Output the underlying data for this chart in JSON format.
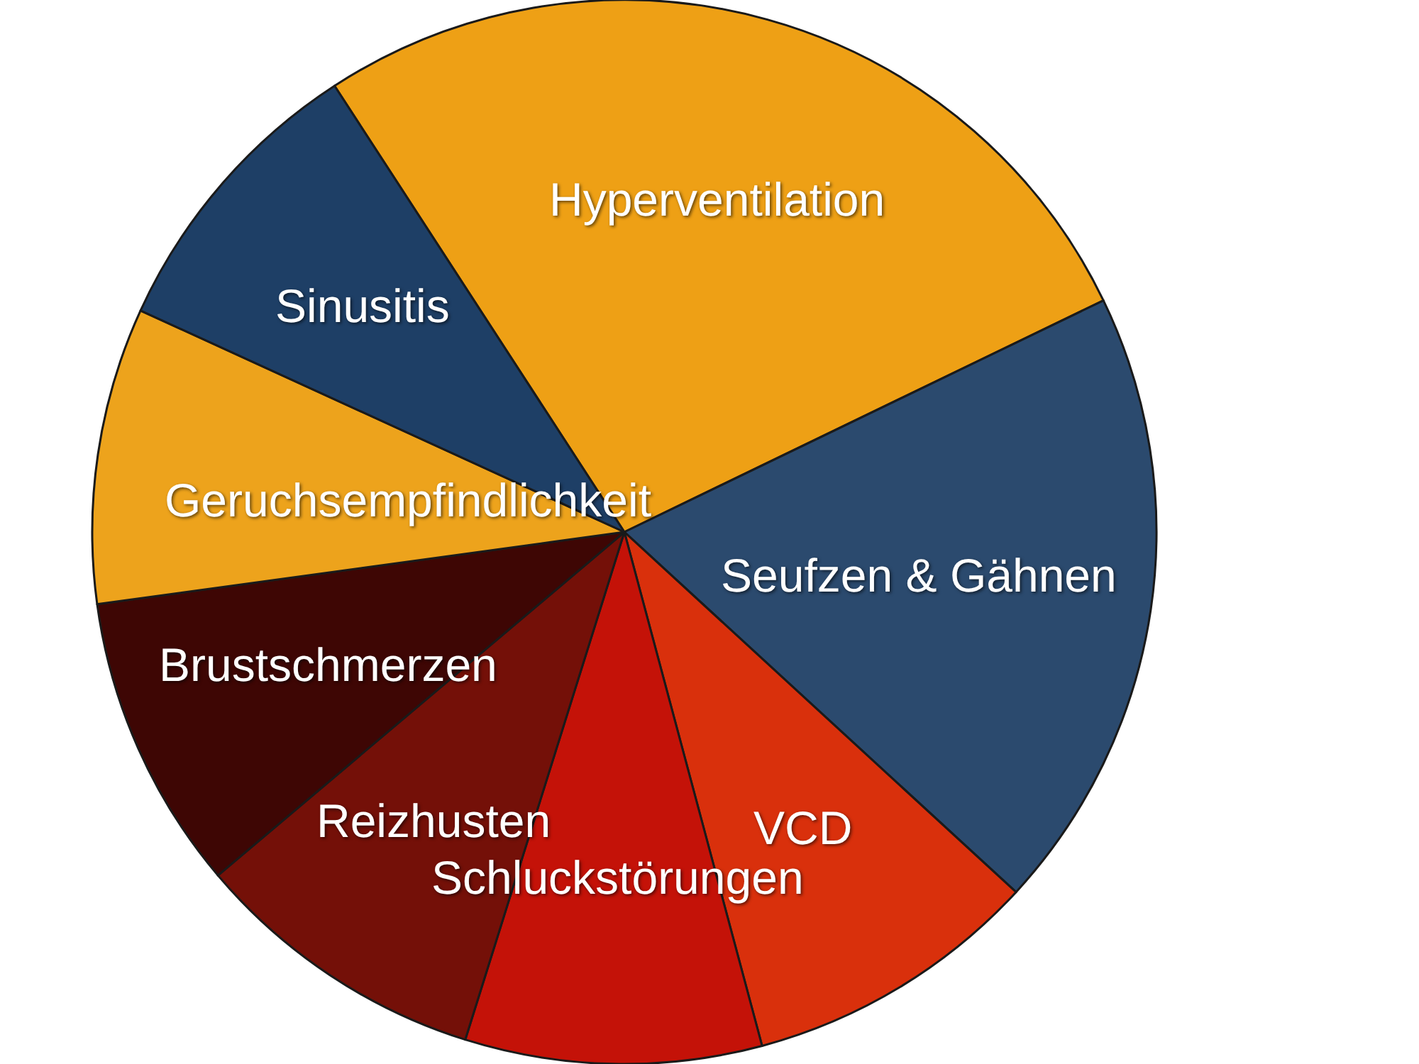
{
  "chart_data": {
    "type": "pie",
    "categories": [
      "Hyperventilation",
      "Seufzen & Gähnen",
      "VCD",
      "Schluckstörungen",
      "Reizhusten",
      "Brustschmerzen",
      "Geruchsempfindlichkeit",
      "Sinusitis"
    ],
    "values": [
      27,
      19,
      9,
      9,
      9,
      9,
      9,
      9
    ],
    "colors": [
      "#eea015",
      "#2b4a6e",
      "#d9300c",
      "#c41208",
      "#741008",
      "#3e0604",
      "#eda31c",
      "#1e3f66"
    ]
  }
}
